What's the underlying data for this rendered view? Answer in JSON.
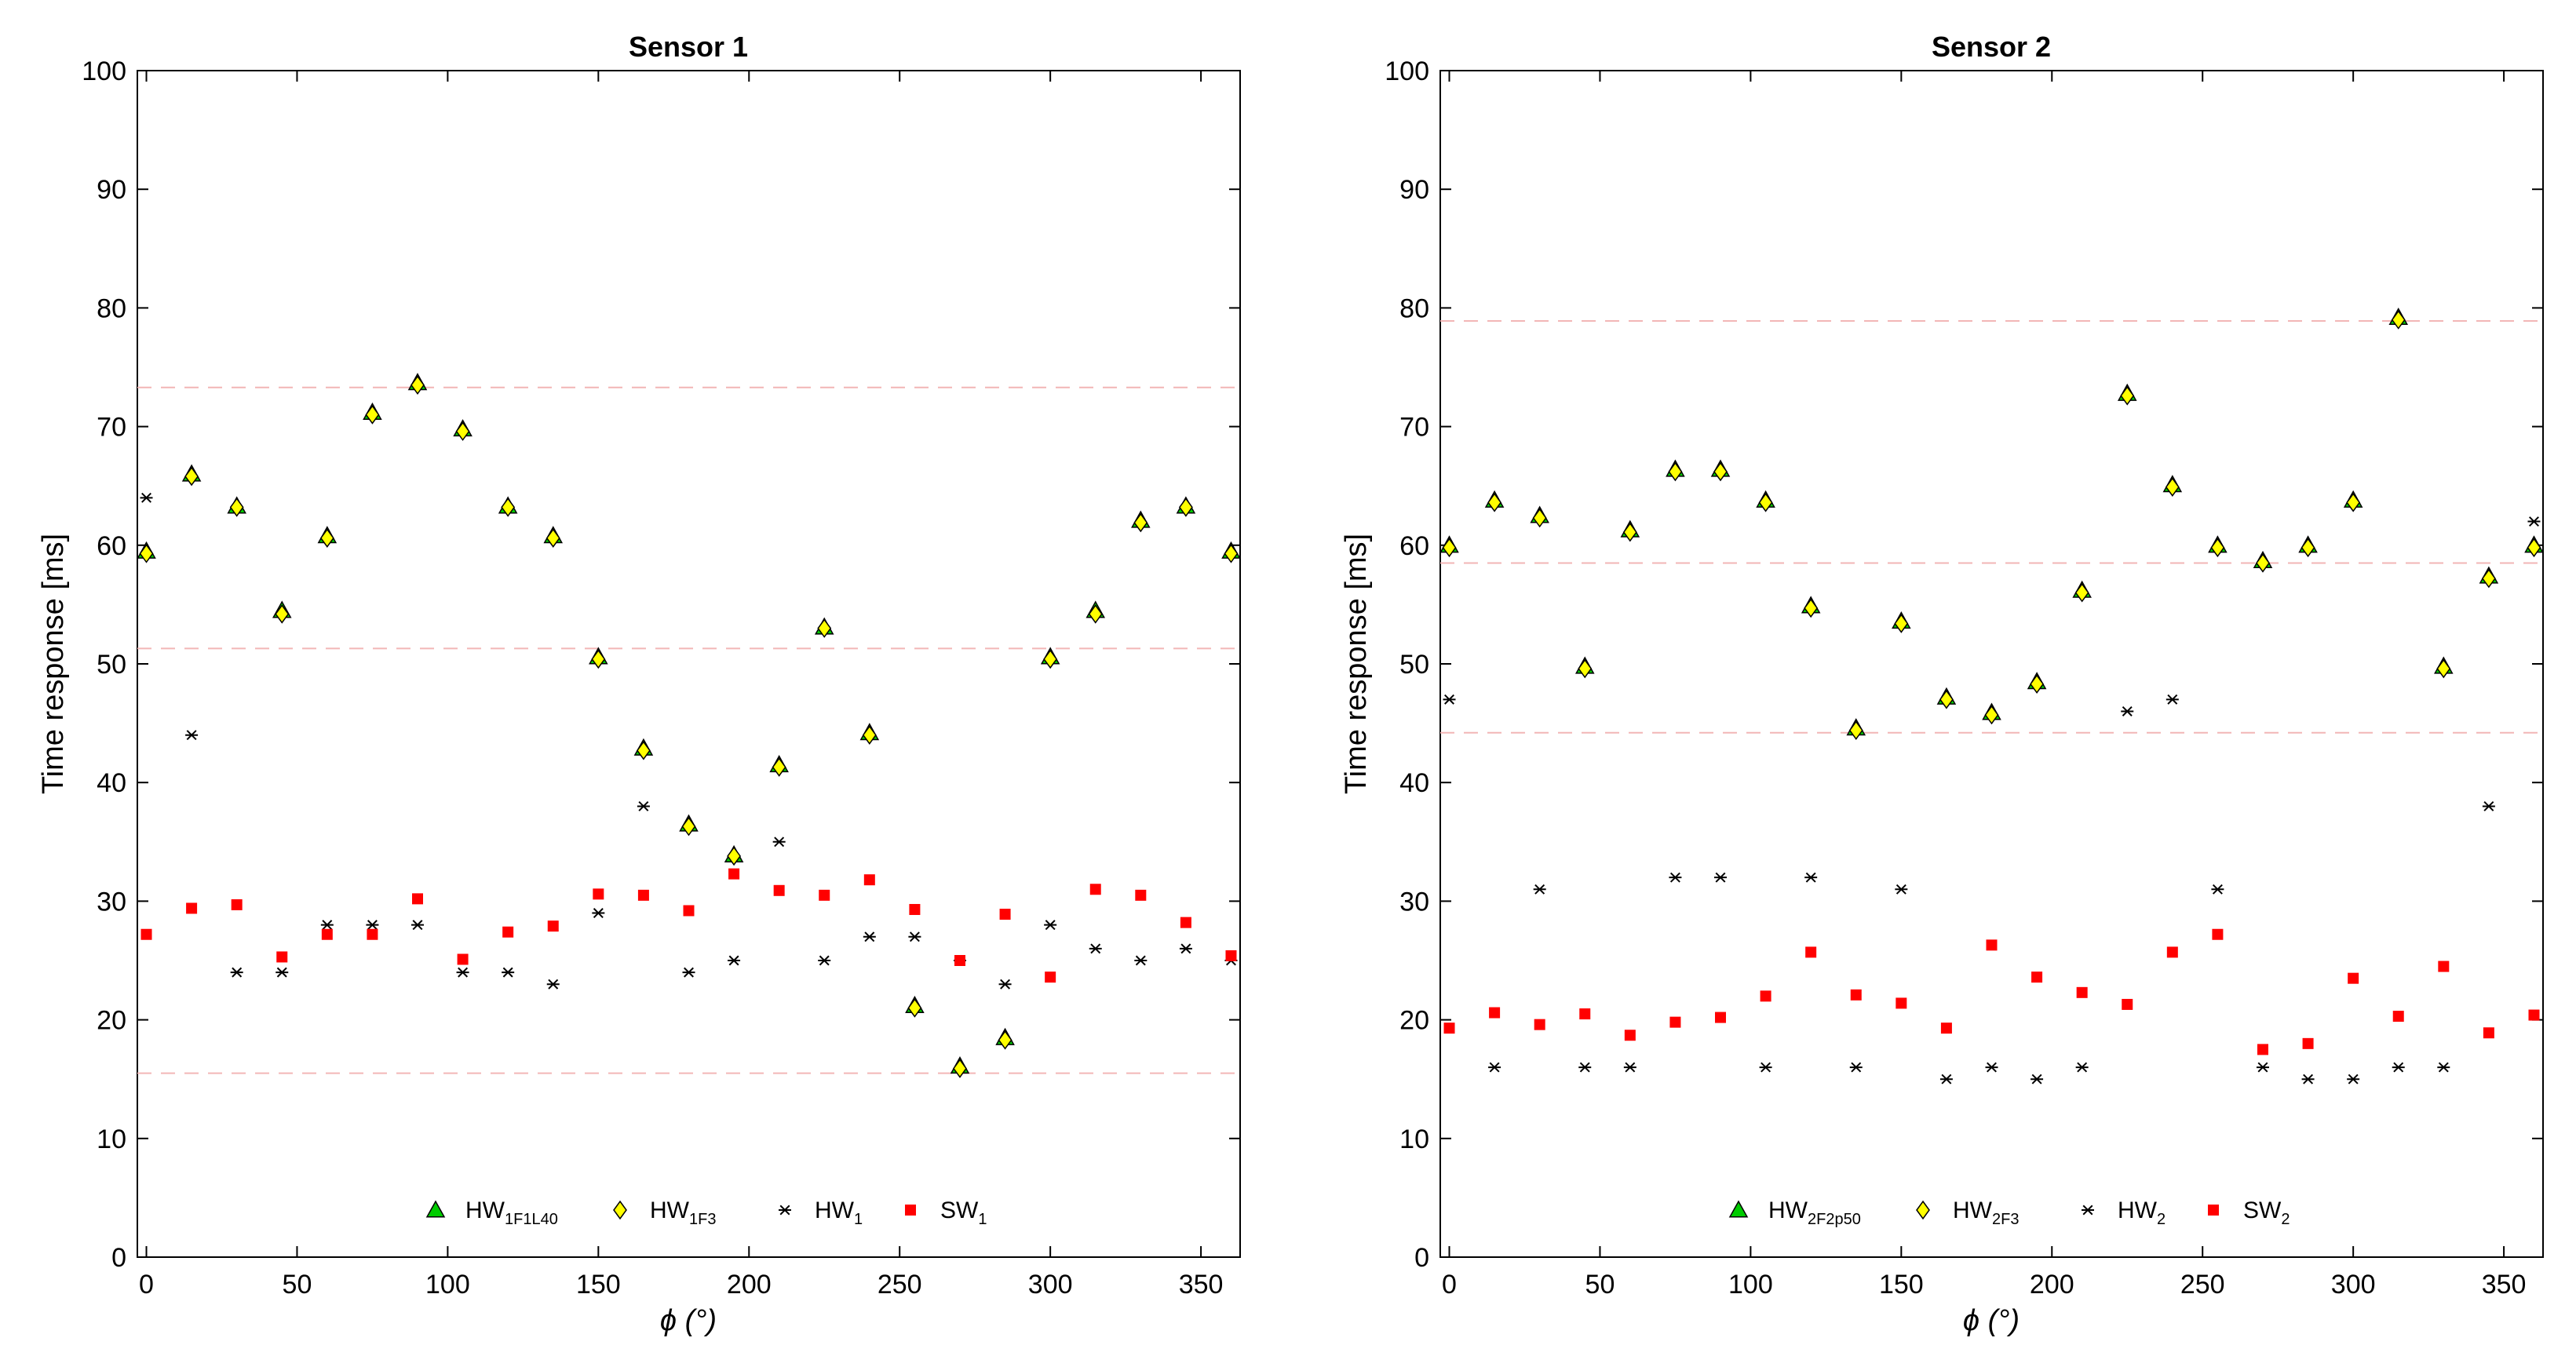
{
  "chart_data": [
    {
      "type": "scatter",
      "title": "Sensor 1",
      "xlabel": "ϕ (°)",
      "ylabel": "Time response [ms]",
      "xlim": [
        -3,
        363
      ],
      "ylim": [
        0,
        100
      ],
      "xticks": [
        0,
        50,
        100,
        150,
        200,
        250,
        300,
        350
      ],
      "yticks": [
        0,
        10,
        20,
        30,
        40,
        50,
        60,
        70,
        80,
        90,
        100
      ],
      "reference_lines": [
        73.3,
        51.3,
        15.5
      ],
      "x": [
        0,
        15,
        30,
        45,
        60,
        75,
        90,
        105,
        120,
        135,
        150,
        165,
        180,
        195,
        210,
        225,
        240,
        255,
        270,
        285,
        300,
        315,
        330,
        345,
        360
      ],
      "series": [
        {
          "name": "HW",
          "sub": "1F1L40",
          "marker": "triangle",
          "color": "#00cc00",
          "values": [
            59.5,
            66,
            63.3,
            54.5,
            60.8,
            71.2,
            73.7,
            69.8,
            63.3,
            60.8,
            50.6,
            42.9,
            36.5,
            33.9,
            41.5,
            53.1,
            44.2,
            21.2,
            16.1,
            18.5,
            50.6,
            54.5,
            62.1,
            63.3,
            59.5
          ]
        },
        {
          "name": "HW",
          "sub": "1F3",
          "marker": "diamond",
          "color": "#ffff00",
          "values": [
            59.3,
            65.8,
            63.2,
            54.2,
            60.6,
            71,
            73.5,
            69.6,
            63.2,
            60.6,
            50.4,
            42.7,
            36.3,
            33.8,
            41.3,
            53,
            44,
            21,
            15.9,
            18.3,
            50.4,
            54.2,
            61.9,
            63.2,
            59.3
          ]
        },
        {
          "name": "HW",
          "sub": "1",
          "marker": "asterisk",
          "color": "#000000",
          "values": [
            64,
            44,
            24,
            24,
            28,
            28,
            28,
            24,
            24,
            23,
            29,
            38,
            24,
            25,
            35,
            25,
            27,
            27,
            25,
            23,
            28,
            26,
            25,
            26,
            25
          ]
        },
        {
          "name": "SW",
          "sub": "1",
          "marker": "square",
          "color": "#ff0000",
          "values": [
            27.2,
            29.4,
            29.7,
            25.3,
            27.2,
            27.2,
            30.2,
            25.1,
            27.4,
            27.9,
            30.6,
            30.5,
            29.2,
            32.3,
            30.9,
            30.5,
            31.8,
            29.3,
            25,
            28.9,
            23.6,
            31,
            30.5,
            28.2,
            25.4
          ]
        }
      ],
      "legend_position": "bottom-center"
    },
    {
      "type": "scatter",
      "title": "Sensor 2",
      "xlabel": "ϕ (°)",
      "ylabel": "Time response [ms]",
      "xlim": [
        -3,
        363
      ],
      "ylim": [
        0,
        100
      ],
      "xticks": [
        0,
        50,
        100,
        150,
        200,
        250,
        300,
        350
      ],
      "yticks": [
        0,
        10,
        20,
        30,
        40,
        50,
        60,
        70,
        80,
        90,
        100
      ],
      "reference_lines": [
        78.9,
        58.5,
        44.2
      ],
      "x": [
        0,
        15,
        30,
        45,
        60,
        75,
        90,
        105,
        120,
        135,
        150,
        165,
        180,
        195,
        210,
        225,
        240,
        255,
        270,
        285,
        300,
        315,
        330,
        345,
        360
      ],
      "series": [
        {
          "name": "HW",
          "sub": "2F2p50",
          "marker": "triangle",
          "color": "#00cc00",
          "values": [
            60,
            63.8,
            62.5,
            49.8,
            61.3,
            66.4,
            66.4,
            63.8,
            54.9,
            44.6,
            53.6,
            47.2,
            45.9,
            48.5,
            56.2,
            72.8,
            65.1,
            60,
            58.7,
            60,
            63.8,
            79.2,
            49.8,
            57.4,
            60
          ]
        },
        {
          "name": "HW",
          "sub": "2F3",
          "marker": "diamond",
          "color": "#ffff00",
          "values": [
            59.8,
            63.6,
            62.3,
            49.6,
            61.1,
            66.2,
            66.2,
            63.6,
            54.7,
            44.4,
            53.4,
            47,
            45.7,
            48.3,
            56,
            72.6,
            64.9,
            59.8,
            58.5,
            59.8,
            63.6,
            79,
            49.6,
            57.2,
            59.8
          ]
        },
        {
          "name": "HW",
          "sub": "2",
          "marker": "asterisk",
          "color": "#000000",
          "values": [
            47,
            16,
            31,
            16,
            16,
            32,
            32,
            16,
            32,
            16,
            31,
            15,
            16,
            15,
            16,
            46,
            47,
            31,
            16,
            15,
            15,
            16,
            16,
            38,
            62
          ]
        },
        {
          "name": "SW",
          "sub": "2",
          "marker": "square",
          "color": "#ff0000",
          "values": [
            19.3,
            20.6,
            19.6,
            20.5,
            18.7,
            19.8,
            20.2,
            22,
            25.7,
            22.1,
            21.4,
            19.3,
            26.3,
            23.6,
            22.3,
            21.3,
            25.7,
            27.2,
            17.5,
            18,
            23.5,
            20.3,
            24.5,
            18.9,
            20.4
          ]
        }
      ],
      "legend_position": "bottom-center"
    }
  ]
}
